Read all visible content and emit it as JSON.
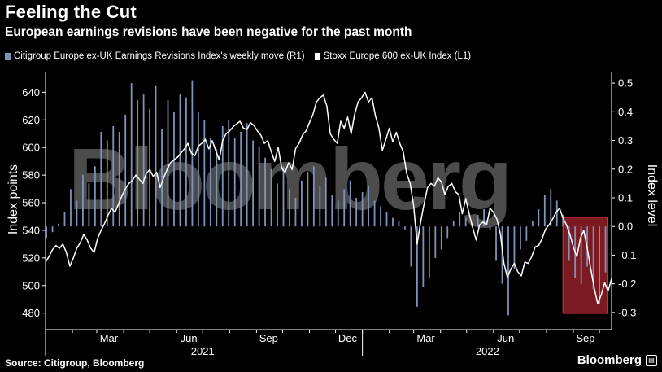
{
  "header": {
    "title": "Feeling the Cut",
    "subtitle": "European earnings revisions have been negative for the past month"
  },
  "legend": [
    {
      "label": "Citigroup Europe ex-UK Earnings Revisions Index's weekly move (R1)",
      "color": "#7f93b8"
    },
    {
      "label": "Stoxx Europe 600 ex-UK Index (L1)",
      "color": "#ffffff"
    }
  ],
  "footer": {
    "source": "Source: Citigroup, Bloomberg",
    "brand": "Bloomberg"
  },
  "watermark": "Bloomberg",
  "chart_data": {
    "type": "line",
    "x_axis": {
      "month_labels": [
        "Mar",
        "Jun",
        "Sep",
        "Dec",
        "Mar",
        "Jun",
        "Sep"
      ],
      "year_labels": [
        "2021",
        "2022"
      ],
      "range": [
        "2021-01-01",
        "2022-10-15"
      ]
    },
    "y_left": {
      "title": "Index points",
      "range": [
        468,
        655
      ],
      "ticks": [
        640,
        620,
        600,
        580,
        560,
        540,
        520,
        500,
        480
      ]
    },
    "y_right": {
      "title": "Index level",
      "range": [
        -0.36,
        0.54
      ],
      "ticks": [
        "0.5",
        "0.4",
        "0.3",
        "0.2",
        "0.1",
        "0.0",
        "-0.1",
        "-0.2",
        "-0.3"
      ]
    },
    "highlight": {
      "from": "2022-08-20",
      "to": "2022-10-10",
      "color": "#e0303a"
    },
    "colors": {
      "line": "#ffffff",
      "bars": "#7f93b8"
    },
    "series": [
      {
        "name": "Stoxx Europe 600 ex-UK Index (L1)",
        "axis": "left",
        "type": "line",
        "points": [
          [
            "2021-01-01",
            517
          ],
          [
            "2021-01-05",
            521
          ],
          [
            "2021-01-09",
            526
          ],
          [
            "2021-01-13",
            529
          ],
          [
            "2021-01-17",
            527
          ],
          [
            "2021-01-21",
            530
          ],
          [
            "2021-01-25",
            524
          ],
          [
            "2021-01-29",
            514
          ],
          [
            "2021-02-02",
            520
          ],
          [
            "2021-02-06",
            527
          ],
          [
            "2021-02-10",
            531
          ],
          [
            "2021-02-14",
            537
          ],
          [
            "2021-02-18",
            533
          ],
          [
            "2021-02-22",
            527
          ],
          [
            "2021-02-26",
            524
          ],
          [
            "2021-03-02",
            534
          ],
          [
            "2021-03-06",
            540
          ],
          [
            "2021-03-10",
            545
          ],
          [
            "2021-03-14",
            551
          ],
          [
            "2021-03-18",
            556
          ],
          [
            "2021-03-22",
            553
          ],
          [
            "2021-03-26",
            559
          ],
          [
            "2021-03-30",
            565
          ],
          [
            "2021-04-03",
            570
          ],
          [
            "2021-04-07",
            574
          ],
          [
            "2021-04-11",
            576
          ],
          [
            "2021-04-15",
            580
          ],
          [
            "2021-04-19",
            577
          ],
          [
            "2021-04-23",
            574
          ],
          [
            "2021-04-27",
            581
          ],
          [
            "2021-05-01",
            584
          ],
          [
            "2021-05-05",
            579
          ],
          [
            "2021-05-09",
            582
          ],
          [
            "2021-05-13",
            571
          ],
          [
            "2021-05-17",
            578
          ],
          [
            "2021-05-21",
            584
          ],
          [
            "2021-05-25",
            589
          ],
          [
            "2021-05-29",
            591
          ],
          [
            "2021-06-02",
            593
          ],
          [
            "2021-06-06",
            596
          ],
          [
            "2021-06-10",
            599
          ],
          [
            "2021-06-14",
            603
          ],
          [
            "2021-06-18",
            596
          ],
          [
            "2021-06-22",
            594
          ],
          [
            "2021-06-26",
            601
          ],
          [
            "2021-06-30",
            603
          ],
          [
            "2021-07-04",
            606
          ],
          [
            "2021-07-08",
            599
          ],
          [
            "2021-07-12",
            605
          ],
          [
            "2021-07-16",
            598
          ],
          [
            "2021-07-20",
            591
          ],
          [
            "2021-07-24",
            605
          ],
          [
            "2021-07-28",
            610
          ],
          [
            "2021-08-01",
            612
          ],
          [
            "2021-08-05",
            615
          ],
          [
            "2021-08-09",
            617
          ],
          [
            "2021-08-13",
            619
          ],
          [
            "2021-08-17",
            614
          ],
          [
            "2021-08-21",
            613
          ],
          [
            "2021-08-25",
            618
          ],
          [
            "2021-08-29",
            616
          ],
          [
            "2021-09-02",
            612
          ],
          [
            "2021-09-06",
            609
          ],
          [
            "2021-09-10",
            603
          ],
          [
            "2021-09-14",
            605
          ],
          [
            "2021-09-18",
            597
          ],
          [
            "2021-09-22",
            590
          ],
          [
            "2021-09-26",
            600
          ],
          [
            "2021-09-30",
            585
          ],
          [
            "2021-10-04",
            582
          ],
          [
            "2021-10-08",
            589
          ],
          [
            "2021-10-12",
            584
          ],
          [
            "2021-10-16",
            599
          ],
          [
            "2021-10-20",
            603
          ],
          [
            "2021-10-24",
            609
          ],
          [
            "2021-10-28",
            612
          ],
          [
            "2021-11-01",
            618
          ],
          [
            "2021-11-05",
            624
          ],
          [
            "2021-11-09",
            633
          ],
          [
            "2021-11-13",
            636
          ],
          [
            "2021-11-17",
            638
          ],
          [
            "2021-11-21",
            630
          ],
          [
            "2021-11-25",
            610
          ],
          [
            "2021-11-29",
            606
          ],
          [
            "2021-12-03",
            603
          ],
          [
            "2021-12-07",
            619
          ],
          [
            "2021-12-11",
            614
          ],
          [
            "2021-12-15",
            622
          ],
          [
            "2021-12-19",
            610
          ],
          [
            "2021-12-23",
            624
          ],
          [
            "2021-12-27",
            633
          ],
          [
            "2021-12-31",
            636
          ],
          [
            "2022-01-04",
            640
          ],
          [
            "2022-01-08",
            633
          ],
          [
            "2022-01-12",
            636
          ],
          [
            "2022-01-16",
            623
          ],
          [
            "2022-01-20",
            614
          ],
          [
            "2022-01-24",
            598
          ],
          [
            "2022-01-28",
            606
          ],
          [
            "2022-02-01",
            614
          ],
          [
            "2022-02-05",
            604
          ],
          [
            "2022-02-09",
            611
          ],
          [
            "2022-02-13",
            603
          ],
          [
            "2022-02-17",
            597
          ],
          [
            "2022-02-21",
            581
          ],
          [
            "2022-02-25",
            574
          ],
          [
            "2022-03-01",
            558
          ],
          [
            "2022-03-05",
            530
          ],
          [
            "2022-03-09",
            546
          ],
          [
            "2022-03-13",
            559
          ],
          [
            "2022-03-17",
            571
          ],
          [
            "2022-03-21",
            574
          ],
          [
            "2022-03-25",
            572
          ],
          [
            "2022-03-29",
            578
          ],
          [
            "2022-04-02",
            575
          ],
          [
            "2022-04-06",
            566
          ],
          [
            "2022-04-10",
            572
          ],
          [
            "2022-04-14",
            574
          ],
          [
            "2022-04-18",
            568
          ],
          [
            "2022-04-22",
            566
          ],
          [
            "2022-04-26",
            552
          ],
          [
            "2022-04-30",
            563
          ],
          [
            "2022-05-04",
            552
          ],
          [
            "2022-05-08",
            542
          ],
          [
            "2022-05-12",
            533
          ],
          [
            "2022-05-16",
            544
          ],
          [
            "2022-05-20",
            546
          ],
          [
            "2022-05-24",
            544
          ],
          [
            "2022-05-28",
            556
          ],
          [
            "2022-06-01",
            553
          ],
          [
            "2022-06-05",
            548
          ],
          [
            "2022-06-09",
            537
          ],
          [
            "2022-06-13",
            516
          ],
          [
            "2022-06-17",
            506
          ],
          [
            "2022-06-21",
            512
          ],
          [
            "2022-06-25",
            516
          ],
          [
            "2022-06-29",
            510
          ],
          [
            "2022-07-03",
            507
          ],
          [
            "2022-07-07",
            517
          ],
          [
            "2022-07-11",
            516
          ],
          [
            "2022-07-15",
            521
          ],
          [
            "2022-07-19",
            528
          ],
          [
            "2022-07-23",
            529
          ],
          [
            "2022-07-27",
            534
          ],
          [
            "2022-07-31",
            541
          ],
          [
            "2022-08-04",
            544
          ],
          [
            "2022-08-08",
            548
          ],
          [
            "2022-08-12",
            553
          ],
          [
            "2022-08-16",
            556
          ],
          [
            "2022-08-20",
            549
          ],
          [
            "2022-08-24",
            544
          ],
          [
            "2022-08-28",
            537
          ],
          [
            "2022-09-01",
            528
          ],
          [
            "2022-09-05",
            521
          ],
          [
            "2022-09-09",
            534
          ],
          [
            "2022-09-13",
            540
          ],
          [
            "2022-09-17",
            527
          ],
          [
            "2022-09-21",
            512
          ],
          [
            "2022-09-25",
            498
          ],
          [
            "2022-09-29",
            487
          ],
          [
            "2022-10-03",
            493
          ],
          [
            "2022-10-07",
            502
          ],
          [
            "2022-10-11",
            496
          ],
          [
            "2022-10-15",
            505
          ]
        ]
      },
      {
        "name": "Citigroup Europe ex-UK Earnings Revisions Index's weekly move (R1)",
        "axis": "right",
        "type": "bar",
        "points": [
          [
            "2021-01-02",
            -0.04
          ],
          [
            "2021-01-09",
            -0.02
          ],
          [
            "2021-01-16",
            0.01
          ],
          [
            "2021-01-23",
            0.05
          ],
          [
            "2021-01-30",
            0.13
          ],
          [
            "2021-02-06",
            0.09
          ],
          [
            "2021-02-13",
            0.18
          ],
          [
            "2021-02-20",
            0.15
          ],
          [
            "2021-02-27",
            0.21
          ],
          [
            "2021-03-06",
            0.33
          ],
          [
            "2021-03-13",
            0.3
          ],
          [
            "2021-03-20",
            0.35
          ],
          [
            "2021-03-27",
            0.33
          ],
          [
            "2021-04-03",
            0.39
          ],
          [
            "2021-04-10",
            0.5
          ],
          [
            "2021-04-17",
            0.44
          ],
          [
            "2021-04-24",
            0.46
          ],
          [
            "2021-05-01",
            0.41
          ],
          [
            "2021-05-08",
            0.49
          ],
          [
            "2021-05-15",
            0.34
          ],
          [
            "2021-05-22",
            0.44
          ],
          [
            "2021-05-29",
            0.4
          ],
          [
            "2021-06-05",
            0.46
          ],
          [
            "2021-06-12",
            0.45
          ],
          [
            "2021-06-19",
            0.51
          ],
          [
            "2021-06-26",
            0.4
          ],
          [
            "2021-07-03",
            0.37
          ],
          [
            "2021-07-10",
            0.31
          ],
          [
            "2021-07-17",
            0.27
          ],
          [
            "2021-07-24",
            0.35
          ],
          [
            "2021-07-31",
            0.37
          ],
          [
            "2021-08-07",
            0.31
          ],
          [
            "2021-08-14",
            0.33
          ],
          [
            "2021-08-21",
            0.36
          ],
          [
            "2021-08-28",
            0.3
          ],
          [
            "2021-09-04",
            0.28
          ],
          [
            "2021-09-11",
            0.24
          ],
          [
            "2021-09-18",
            0.2
          ],
          [
            "2021-09-25",
            0.15
          ],
          [
            "2021-10-02",
            0.21
          ],
          [
            "2021-10-09",
            0.13
          ],
          [
            "2021-10-16",
            0.1
          ],
          [
            "2021-10-23",
            0.16
          ],
          [
            "2021-10-30",
            0.19
          ],
          [
            "2021-11-06",
            0.21
          ],
          [
            "2021-11-13",
            0.14
          ],
          [
            "2021-11-20",
            0.17
          ],
          [
            "2021-11-27",
            0.11
          ],
          [
            "2021-12-04",
            0.09
          ],
          [
            "2021-12-11",
            0.13
          ],
          [
            "2021-12-18",
            0.16
          ],
          [
            "2021-12-25",
            0.1
          ],
          [
            "2022-01-01",
            0.12
          ],
          [
            "2022-01-08",
            0.14
          ],
          [
            "2022-01-15",
            0.09
          ],
          [
            "2022-01-22",
            0.07
          ],
          [
            "2022-01-29",
            0.05
          ],
          [
            "2022-02-05",
            0.03
          ],
          [
            "2022-02-12",
            0.02
          ],
          [
            "2022-02-19",
            -0.01
          ],
          [
            "2022-02-26",
            -0.14
          ],
          [
            "2022-03-05",
            -0.28
          ],
          [
            "2022-03-12",
            -0.21
          ],
          [
            "2022-03-19",
            -0.18
          ],
          [
            "2022-03-26",
            -0.11
          ],
          [
            "2022-04-02",
            -0.08
          ],
          [
            "2022-04-09",
            -0.04
          ],
          [
            "2022-04-16",
            0.02
          ],
          [
            "2022-04-23",
            0.05
          ],
          [
            "2022-04-30",
            0.03
          ],
          [
            "2022-05-07",
            0.01
          ],
          [
            "2022-05-14",
            0.04
          ],
          [
            "2022-05-21",
            0.06
          ],
          [
            "2022-05-28",
            -0.01
          ],
          [
            "2022-06-04",
            -0.12
          ],
          [
            "2022-06-11",
            -0.2
          ],
          [
            "2022-06-18",
            -0.31
          ],
          [
            "2022-06-25",
            -0.15
          ],
          [
            "2022-07-02",
            -0.08
          ],
          [
            "2022-07-09",
            -0.05
          ],
          [
            "2022-07-16",
            0.02
          ],
          [
            "2022-07-23",
            0.06
          ],
          [
            "2022-07-30",
            0.11
          ],
          [
            "2022-08-06",
            0.13
          ],
          [
            "2022-08-13",
            0.09
          ],
          [
            "2022-08-20",
            0.04
          ],
          [
            "2022-08-27",
            -0.12
          ],
          [
            "2022-09-03",
            -0.18
          ],
          [
            "2022-09-10",
            -0.2
          ],
          [
            "2022-09-17",
            -0.14
          ],
          [
            "2022-09-24",
            -0.22
          ],
          [
            "2022-10-01",
            -0.27
          ],
          [
            "2022-10-08",
            -0.16
          ]
        ]
      }
    ]
  }
}
